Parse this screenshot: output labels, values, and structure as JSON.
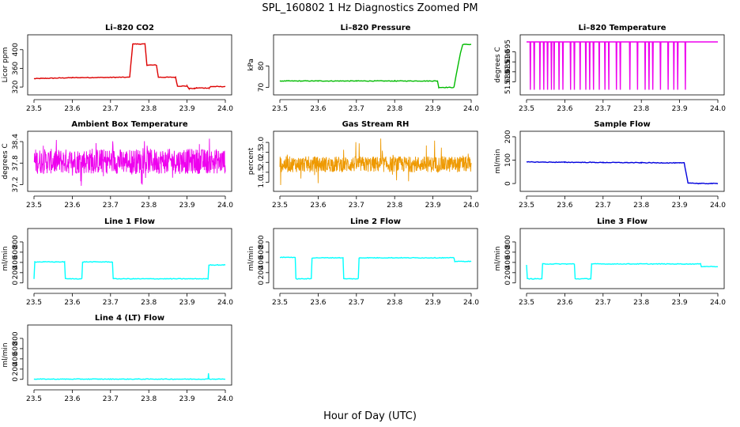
{
  "page_title": "SPL_160802  1 Hz Diagnostics Zoomed PM",
  "x_axis_label": "Hour of Day (UTC)",
  "chart_data": [
    {
      "type": "line",
      "title": "Li–820 CO2",
      "ylabel": "Licor ppm",
      "color": "#dd0000",
      "xlim": [
        23.5,
        24.0
      ],
      "ylim": [
        310,
        425
      ],
      "xticks": [
        23.5,
        23.6,
        23.7,
        23.8,
        23.9,
        24.0
      ],
      "yticks": [
        320,
        360,
        400
      ],
      "x": [
        23.5,
        23.6,
        23.75,
        23.758,
        23.79,
        23.795,
        23.82,
        23.825,
        23.87,
        23.875,
        23.9,
        23.905,
        23.92,
        23.925,
        23.958,
        23.962,
        24.0
      ],
      "y": [
        338,
        340,
        341,
        412,
        412,
        367,
        367,
        341,
        341,
        322,
        322,
        317,
        317,
        318,
        318,
        321,
        321
      ]
    },
    {
      "type": "line",
      "title": "Li–820 Pressure",
      "ylabel": "kPa",
      "color": "#00bb00",
      "xlim": [
        23.5,
        24.0
      ],
      "ylim": [
        68,
        93
      ],
      "xticks": [
        23.5,
        23.6,
        23.7,
        23.8,
        23.9,
        24.0
      ],
      "yticks": [
        70,
        80
      ],
      "x": [
        23.5,
        23.6,
        23.7,
        23.8,
        23.9,
        23.912,
        23.915,
        23.955,
        23.962,
        23.972,
        23.978,
        24.0
      ],
      "y": [
        73,
        73,
        73,
        73,
        73,
        73,
        70,
        70,
        77,
        86,
        90,
        90
      ]
    },
    {
      "type": "line",
      "title": "Li–820 Temperature",
      "ylabel": "degrees C",
      "color": "#ee00ee",
      "xlim": [
        23.5,
        24.0
      ],
      "ylim": [
        51.675,
        51.702
      ],
      "xticks": [
        23.5,
        23.6,
        23.7,
        23.8,
        23.9,
        24.0
      ],
      "yticks": [
        51.68,
        51.685,
        51.69,
        51.695
      ],
      "baseline": 51.7,
      "low": 51.676,
      "drops_x": [
        23.51,
        23.52,
        23.535,
        23.545,
        23.555,
        23.565,
        23.572,
        23.585,
        23.595,
        23.615,
        23.625,
        23.64,
        23.655,
        23.665,
        23.675,
        23.69,
        23.705,
        23.715,
        23.735,
        23.745,
        23.77,
        23.79,
        23.81,
        23.82,
        23.83,
        23.85,
        23.87,
        23.885,
        23.895,
        23.915
      ]
    },
    {
      "type": "line",
      "title": "Ambient Box Temperature",
      "ylabel": "degrees C",
      "color": "#ee00ee",
      "xlim": [
        23.5,
        24.0
      ],
      "ylim": [
        37.1,
        38.6
      ],
      "xticks": [
        23.5,
        23.6,
        23.7,
        23.8,
        23.9,
        24.0
      ],
      "yticks": [
        37.2,
        37.8,
        38.4
      ],
      "band": [
        37.5,
        38.2
      ],
      "range": [
        37.15,
        38.5
      ]
    },
    {
      "type": "line",
      "title": "Gas Stream RH",
      "ylabel": "percent",
      "color": "#ee9900",
      "xlim": [
        23.5,
        24.0
      ],
      "ylim": [
        0.7,
        3.4
      ],
      "xticks": [
        23.5,
        23.6,
        23.7,
        23.8,
        23.9,
        24.0
      ],
      "yticks": [
        1.0,
        1.5,
        2.0,
        2.5,
        3.0
      ],
      "band": [
        1.5,
        2.3
      ],
      "range": [
        0.8,
        3.3
      ]
    },
    {
      "type": "line",
      "title": "Sample Flow",
      "ylabel": "ml/min",
      "color": "#0000dd",
      "xlim": [
        23.5,
        24.0
      ],
      "ylim": [
        -20,
        210
      ],
      "xticks": [
        23.5,
        23.6,
        23.7,
        23.8,
        23.9,
        24.0
      ],
      "yticks": [
        0,
        100,
        200
      ],
      "x": [
        23.5,
        23.6,
        23.7,
        23.8,
        23.9,
        23.912,
        23.922,
        23.95,
        24.0
      ],
      "y": [
        92,
        91,
        90,
        89,
        88,
        88,
        3,
        0,
        0
      ]
    },
    {
      "type": "line",
      "title": "Line 1 Flow",
      "ylabel": "ml/min",
      "color": "#00ffff",
      "xlim": [
        23.5,
        24.0
      ],
      "ylim": [
        -50,
        1000
      ],
      "xticks": [
        23.5,
        23.6,
        23.7,
        23.8,
        23.9,
        24.0
      ],
      "yticks": [
        0,
        200,
        400,
        600,
        800
      ],
      "x": [
        23.5,
        23.502,
        23.58,
        23.582,
        23.625,
        23.627,
        23.705,
        23.707,
        23.955,
        23.957,
        24.0
      ],
      "y": [
        80,
        410,
        410,
        80,
        80,
        410,
        410,
        80,
        80,
        350,
        350
      ]
    },
    {
      "type": "line",
      "title": "Line 2 Flow",
      "ylabel": "ml/min",
      "color": "#00ffff",
      "xlim": [
        23.5,
        24.0
      ],
      "ylim": [
        -50,
        1000
      ],
      "xticks": [
        23.5,
        23.6,
        23.7,
        23.8,
        23.9,
        24.0
      ],
      "yticks": [
        0,
        200,
        400,
        600,
        800
      ],
      "x": [
        23.5,
        23.54,
        23.542,
        23.582,
        23.584,
        23.665,
        23.667,
        23.705,
        23.707,
        23.955,
        23.957,
        24.0
      ],
      "y": [
        500,
        500,
        80,
        80,
        490,
        490,
        80,
        80,
        490,
        490,
        420,
        420
      ]
    },
    {
      "type": "line",
      "title": "Line 3 Flow",
      "ylabel": "ml/min",
      "color": "#00ffff",
      "xlim": [
        23.5,
        24.0
      ],
      "ylim": [
        -50,
        1000
      ],
      "xticks": [
        23.5,
        23.6,
        23.7,
        23.8,
        23.9,
        24.0
      ],
      "yticks": [
        0,
        200,
        400,
        600,
        800
      ],
      "x": [
        23.5,
        23.502,
        23.54,
        23.542,
        23.625,
        23.627,
        23.668,
        23.67,
        23.955,
        23.957,
        24.0
      ],
      "y": [
        350,
        80,
        80,
        370,
        370,
        80,
        80,
        370,
        370,
        320,
        320
      ]
    },
    {
      "type": "line",
      "title": "Line 4 (LT) Flow",
      "ylabel": "ml/min",
      "color": "#00ffff",
      "xlim": [
        23.5,
        24.0
      ],
      "ylim": [
        -50,
        1000
      ],
      "xticks": [
        23.5,
        23.6,
        23.7,
        23.8,
        23.9,
        24.0
      ],
      "yticks": [
        0,
        200,
        400,
        600,
        800
      ],
      "x": [
        23.5,
        23.955,
        23.956,
        23.957,
        24.0
      ],
      "y": [
        5,
        5,
        120,
        5,
        5
      ]
    }
  ]
}
